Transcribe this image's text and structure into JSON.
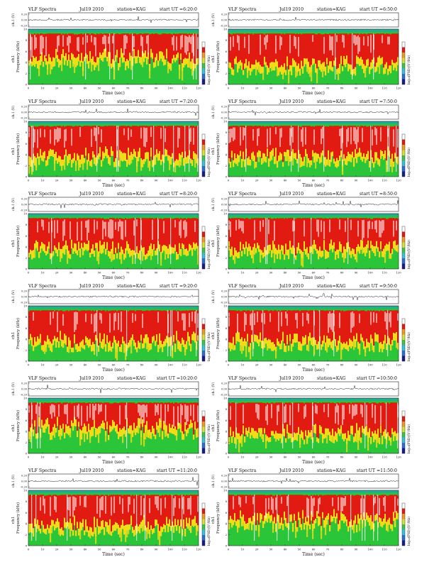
{
  "panels": [
    {
      "header": [
        "VLF Spectra",
        "Jul19 2010",
        "station=KAG",
        "start UT =6:20:0"
      ],
      "profile": "a"
    },
    {
      "header": [
        "VLF Spectra",
        "Jul19 2010",
        "station=KAG",
        "start UT =6:50:0"
      ],
      "profile": "b"
    },
    {
      "header": [
        "VLF Spectra",
        "Jul19 2010",
        "station=KAG",
        "start UT =7:20:0"
      ],
      "profile": "b"
    },
    {
      "header": [
        "VLF Spectra",
        "Jul19 2010",
        "station=KAG",
        "start UT =7:50:0"
      ],
      "profile": "b"
    },
    {
      "header": [
        "VLF Spectra",
        "Jul19 2010",
        "station=KAG",
        "start UT =8:20:0"
      ],
      "profile": "b"
    },
    {
      "header": [
        "VLF Spectra",
        "Jul19 2010",
        "station=KAG",
        "start UT =8:50:0"
      ],
      "profile": "b"
    },
    {
      "header": [
        "VLF Spectra",
        "Jul19 2010",
        "station=KAG",
        "start UT =9:20:0"
      ],
      "profile": "b"
    },
    {
      "header": [
        "VLF Spectra",
        "Jul19 2010",
        "station=KAG",
        "start UT =9:50:0"
      ],
      "profile": "b"
    },
    {
      "header": [
        "VLF Spectra",
        "Jul19 2010",
        "station=KAG",
        "start UT =10:20:0"
      ],
      "profile": "a"
    },
    {
      "header": [
        "VLF Spectra",
        "Jul19 2010",
        "station=KAG",
        "start UT =10:50:0"
      ],
      "profile": "b"
    },
    {
      "header": [
        "VLF Spectra",
        "Jul19 2010",
        "station=KAG",
        "start UT =11:20:0"
      ],
      "profile": "b"
    },
    {
      "header": [
        "VLF Spectra",
        "Jul19 2010",
        "station=KAG",
        "start UT =11:50:0"
      ],
      "profile": "a"
    }
  ],
  "labels": {
    "signal_axis": "ch.1 (V)",
    "signal_ticks": [
      "0.20",
      "0.00",
      "-0.20"
    ],
    "freq_axis_top": "ch1",
    "freq_axis": "Frequency (kHz)",
    "freq_ticks": [
      "0",
      "2",
      "4",
      "6",
      "8",
      "10"
    ],
    "time_axis": "Time (sec)",
    "time_ticks": [
      "0",
      "10",
      "20",
      "30",
      "40",
      "50",
      "60",
      "70",
      "80",
      "90",
      "100",
      "110",
      "120"
    ],
    "colorbar_label": "log₁₀(PSD)(V²/Hz)"
  },
  "colors": {
    "spectrogram_bands": [
      "#e11a12",
      "#f0dc18",
      "#2bc53a",
      "#1e9ad8"
    ],
    "colorbar": [
      "#1a1a8f",
      "#2a6fd6",
      "#33c4e0",
      "#36c84a",
      "#d9e22a",
      "#f39a1a",
      "#e21a12",
      "#ffffff"
    ],
    "signal_trace": "#222222"
  },
  "chart_data": {
    "type": "heatmap",
    "panel_count": 12,
    "layout": "6 rows by 2 columns",
    "signal_ylim": [
      -0.2,
      0.2
    ],
    "frequency_ylim_khz": [
      0,
      10
    ],
    "time_xlim_sec": [
      0,
      120
    ],
    "description_values": {
      "strong_band_khz": [
        5,
        9.5
      ],
      "moderate_band_khz": [
        2.5,
        5
      ],
      "weak_band_khz": [
        0,
        2.5
      ],
      "top_band_khz": [
        9.5,
        10
      ]
    }
  }
}
